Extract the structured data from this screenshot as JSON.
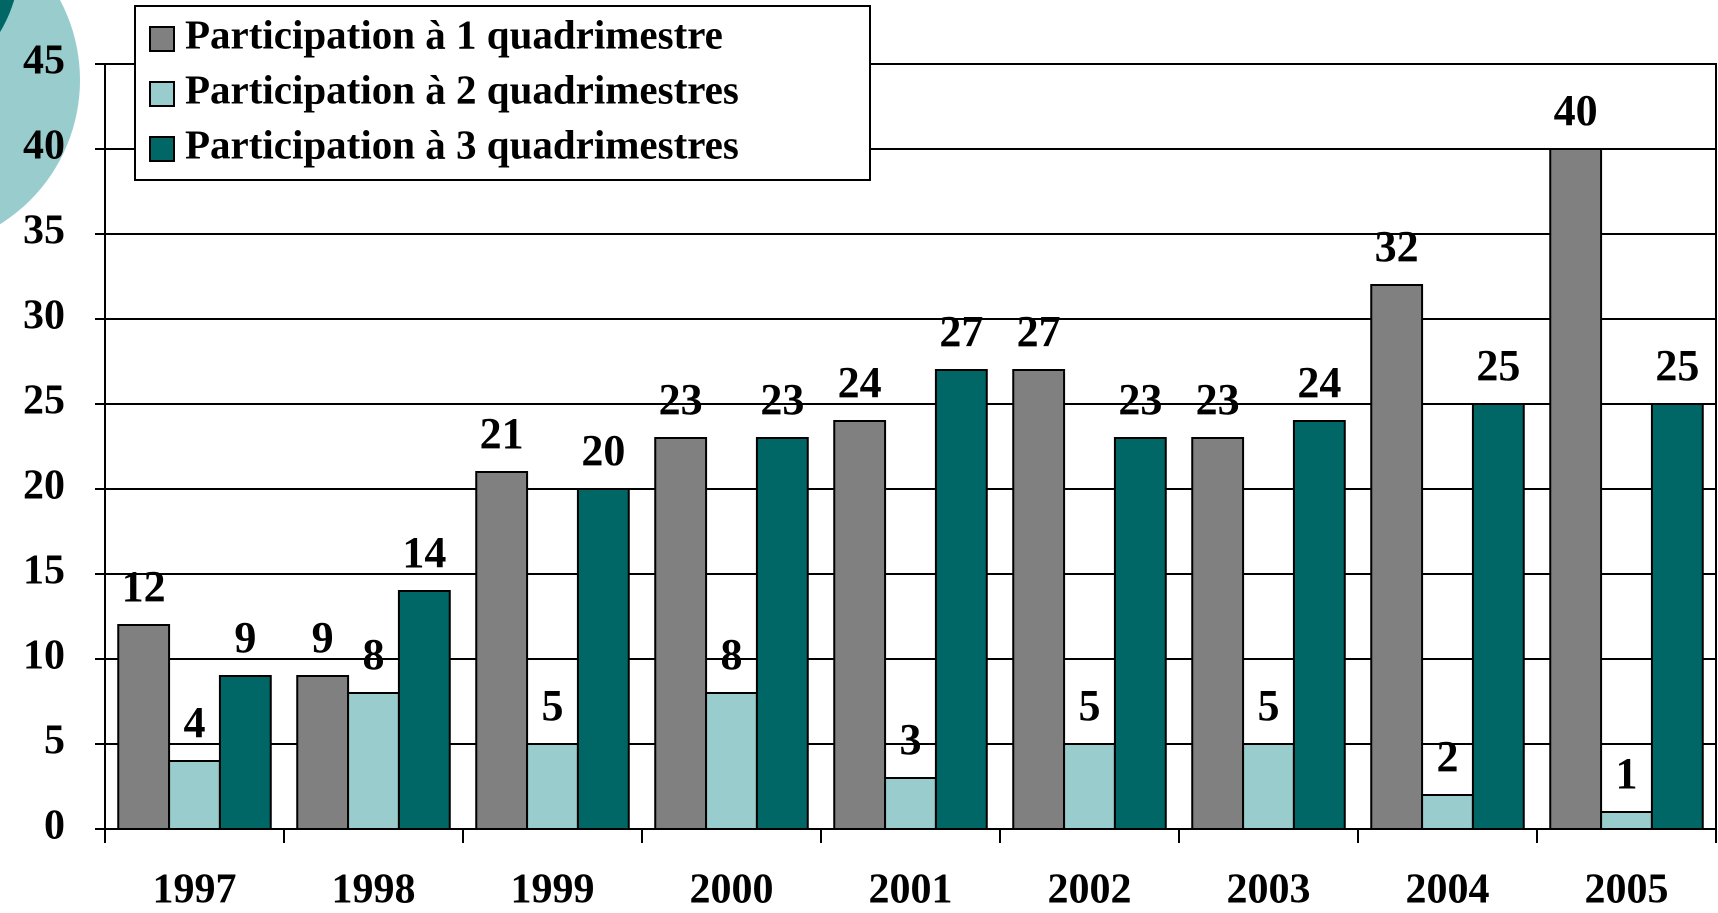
{
  "chart_data": {
    "type": "bar",
    "categories": [
      "1997",
      "1998",
      "1999",
      "2000",
      "2001",
      "2002",
      "2003",
      "2004",
      "2005"
    ],
    "series": [
      {
        "name": "Participation à 1 quadrimestre",
        "color": "#808080",
        "values": [
          12,
          9,
          21,
          23,
          24,
          27,
          23,
          32,
          40
        ]
      },
      {
        "name": "Participation à 2 quadrimestres",
        "color": "#99cccc",
        "values": [
          4,
          8,
          5,
          8,
          3,
          5,
          5,
          2,
          1
        ]
      },
      {
        "name": "Participation à 3 quadrimestres",
        "color": "#006666",
        "values": [
          9,
          14,
          20,
          23,
          27,
          23,
          24,
          25,
          25
        ]
      }
    ],
    "ylim": [
      0,
      45
    ],
    "yticks": [
      0,
      5,
      10,
      15,
      20,
      25,
      30,
      35,
      40,
      45
    ],
    "grid": true,
    "legend": "top-left"
  }
}
